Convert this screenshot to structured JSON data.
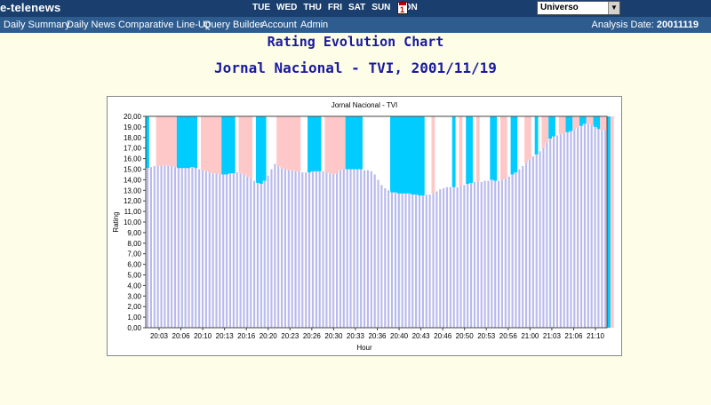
{
  "app": {
    "logo": "e-telenews"
  },
  "topbar": {
    "days": [
      "TUE",
      "WED",
      "THU",
      "FRI",
      "SAT",
      "SUN",
      "MON"
    ],
    "calendar_icon": "calendar-icon",
    "calendar_day": "1",
    "universe_value": "Universo"
  },
  "nav": {
    "items": [
      "Daily Summary",
      "Daily News",
      "Comparative Line-Up",
      "Query Builder",
      "Account",
      "Admin"
    ],
    "analysis_label": "Analysis Date:",
    "analysis_date": "20011119"
  },
  "page": {
    "title": "Rating Evolution Chart",
    "subtitle": "Jornal Nacional - TVI, 2001/11/19"
  },
  "colors": {
    "bar": "#b9b9ec",
    "band_cyan": "#00ccff",
    "band_pink": "#ffc8c8",
    "header_bg": "#1a3f6f",
    "nav_bg": "#2e5c8f",
    "title": "#1a1aa0"
  },
  "chart_data": {
    "type": "bar",
    "title": "Jornal Nacional - TVI",
    "xlabel": "Hour",
    "ylabel": "Rating",
    "ylim": [
      0,
      20
    ],
    "ytick_step": 1,
    "ytick_labels": [
      "0,00",
      "1,00",
      "2,00",
      "3,00",
      "4,00",
      "5,00",
      "6,00",
      "7,00",
      "8,00",
      "9,00",
      "10,00",
      "11,00",
      "12,00",
      "13,00",
      "14,00",
      "15,00",
      "16,00",
      "17,00",
      "18,00",
      "19,00",
      "20,00"
    ],
    "xtick_labels": [
      "20:03",
      "20:06",
      "20:10",
      "20:13",
      "20:16",
      "20:20",
      "20:23",
      "20:26",
      "20:30",
      "20:33",
      "20:36",
      "20:40",
      "20:43",
      "20:46",
      "20:50",
      "20:53",
      "20:56",
      "21:00",
      "21:03",
      "21:06",
      "21:10"
    ],
    "values": [
      15.1,
      15.2,
      15.3,
      15.3,
      15.3,
      15.4,
      15.3,
      15.3,
      15.2,
      15.1,
      15.1,
      15.1,
      15.1,
      15.2,
      15.1,
      15.0,
      14.9,
      14.8,
      14.7,
      14.6,
      14.6,
      14.5,
      14.5,
      14.5,
      14.6,
      14.6,
      14.7,
      14.6,
      14.5,
      14.3,
      14.1,
      13.9,
      13.7,
      13.6,
      13.9,
      14.4,
      15.0,
      15.5,
      15.3,
      15.1,
      15.0,
      14.9,
      14.9,
      14.8,
      14.8,
      14.7,
      14.7,
      14.7,
      14.8,
      14.8,
      14.8,
      14.8,
      14.7,
      14.6,
      14.5,
      14.6,
      14.9,
      15.0,
      15.0,
      15.0,
      15.0,
      15.0,
      15.0,
      14.9,
      14.9,
      14.8,
      14.5,
      14.0,
      13.5,
      13.2,
      13.0,
      12.8,
      12.8,
      12.7,
      12.7,
      12.7,
      12.7,
      12.6,
      12.6,
      12.5,
      12.5,
      12.6,
      12.6,
      12.7,
      12.9,
      13.1,
      13.2,
      13.3,
      13.3,
      13.3,
      13.3,
      13.4,
      13.5,
      13.6,
      13.7,
      13.8,
      13.8,
      13.8,
      13.9,
      13.9,
      14.0,
      13.9,
      13.9,
      14.0,
      14.1,
      14.3,
      14.5,
      14.7,
      15.0,
      15.3,
      15.6,
      15.9,
      16.2,
      16.4,
      16.7,
      17.0,
      17.5,
      17.9,
      18.1,
      18.2,
      18.3,
      18.4,
      18.5,
      18.6,
      18.7,
      18.9,
      19.1,
      19.3,
      19.3,
      19.2,
      19.0,
      18.8,
      18.7,
      18.7
    ],
    "band_colors": [
      "cyan",
      "pink",
      "cyan",
      "pink",
      "cyan",
      "pink",
      "cyan",
      "pink",
      "cyan",
      "pink",
      "cyan",
      "white",
      "cyan",
      "pink",
      "cyan",
      "pink",
      "cyan",
      "pink",
      "cyan",
      "pink",
      "cyan",
      "pink",
      "cyan",
      "pink",
      "cyan",
      "pink",
      "cyan",
      "pink",
      "cyan",
      "pink",
      "cyan",
      "pink",
      "cyan",
      "pink"
    ],
    "band_ranges": [
      [
        0,
        1
      ],
      [
        3,
        9
      ],
      [
        9,
        15
      ],
      [
        16,
        22
      ],
      [
        22,
        26
      ],
      [
        27,
        31
      ],
      [
        32,
        35
      ],
      [
        38,
        45
      ],
      [
        47,
        51
      ],
      [
        52,
        58
      ],
      [
        58,
        63
      ],
      [
        63,
        70
      ],
      [
        71,
        81
      ],
      [
        83,
        84
      ],
      [
        89,
        90
      ],
      [
        91,
        92
      ],
      [
        93,
        95
      ],
      [
        96,
        97
      ],
      [
        100,
        102
      ],
      [
        103,
        105
      ],
      [
        106,
        108
      ],
      [
        110,
        112
      ],
      [
        113,
        114
      ],
      [
        115,
        117
      ],
      [
        117,
        119
      ],
      [
        120,
        122
      ],
      [
        122,
        124
      ],
      [
        124,
        126
      ],
      [
        126,
        128
      ],
      [
        128,
        130
      ],
      [
        130,
        132
      ],
      [
        132,
        134
      ],
      [
        134,
        135
      ],
      [
        135,
        136
      ]
    ]
  }
}
